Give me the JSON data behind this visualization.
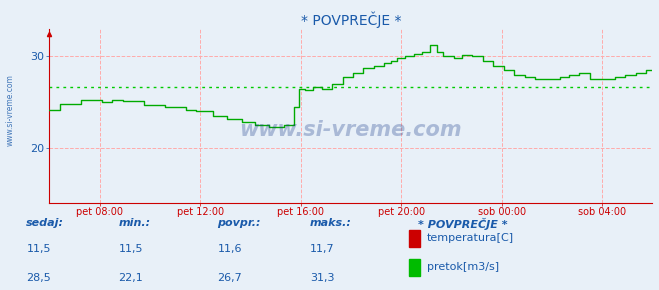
{
  "title": "* POVPREČJE *",
  "bg_color": "#e8f0f8",
  "plot_bg_color": "#e8f0f8",
  "avg_line_color": "#00cc00",
  "avg_line_value": 26.7,
  "ylim": [
    14,
    33
  ],
  "yticks": [
    20,
    30
  ],
  "xlim": [
    0,
    288
  ],
  "xtick_labels": [
    "pet 08:00",
    "pet 12:00",
    "pet 16:00",
    "pet 20:00",
    "sob 00:00",
    "sob 04:00"
  ],
  "xtick_positions": [
    24,
    72,
    120,
    168,
    216,
    264
  ],
  "watermark": "www.si-vreme.com",
  "watermark_color": "#1a3a8a",
  "legend_title": "* POVPREČJE *",
  "legend_items": [
    "temperatura[C]",
    "pretok[m3/s]"
  ],
  "legend_colors": [
    "#cc0000",
    "#00bb00"
  ],
  "table_headers": [
    "sedaj:",
    "min.:",
    "povpr.:",
    "maks.:"
  ],
  "table_row1": [
    "11,5",
    "11,5",
    "11,6",
    "11,7"
  ],
  "table_row2": [
    "28,5",
    "22,1",
    "26,7",
    "31,3"
  ],
  "temp_color": "#cc0000",
  "flow_color": "#00aa00",
  "axis_color": "#cc0000",
  "grid_color": "#ffaaaa",
  "font_color": "#1a5aaa",
  "font_size": 8,
  "title_font_size": 10,
  "left_label": "www.si-vreme.com"
}
